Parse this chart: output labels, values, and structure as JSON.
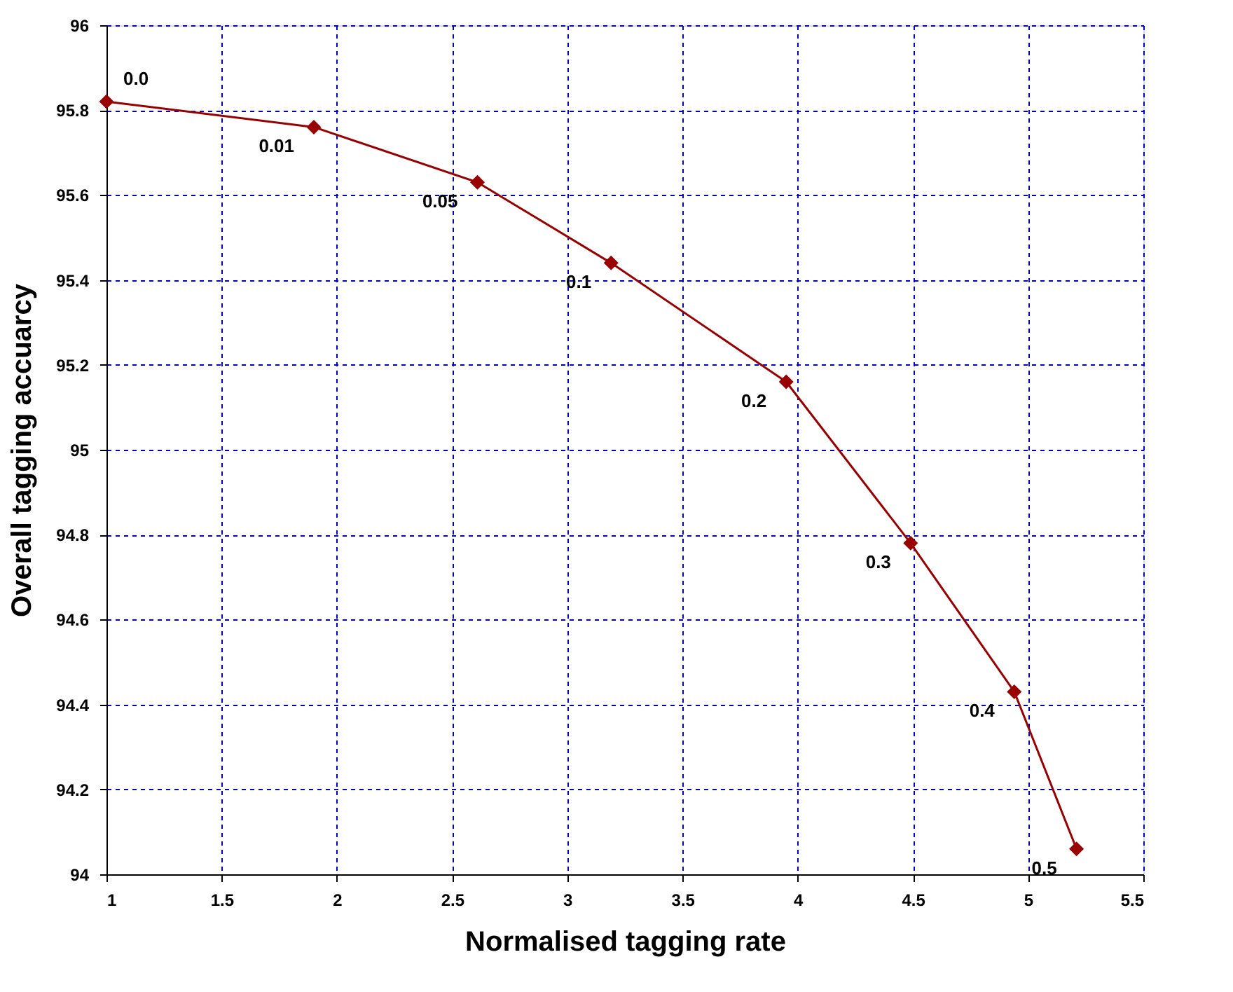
{
  "chart_data": {
    "type": "line",
    "xlabel": "Normalised tagging rate",
    "ylabel": "Overall tagging accuarcy",
    "x": [
      1.0,
      1.9,
      2.61,
      3.19,
      3.95,
      4.49,
      4.94,
      5.21
    ],
    "series": [
      {
        "color": "#990000",
        "values": [
          95.82,
          95.76,
          95.63,
          95.44,
          95.16,
          94.78,
          94.43,
          94.06
        ]
      }
    ],
    "xlim": [
      1,
      5.5
    ],
    "xticks": [
      1,
      1.5,
      2,
      2.5,
      3,
      3.5,
      4,
      4.5,
      5,
      5.5
    ],
    "ylim": [
      94,
      96
    ],
    "yticks": [
      94,
      94.2,
      94.4,
      94.6,
      94.8,
      95,
      95.2,
      95.4,
      95.6,
      95.8,
      96
    ],
    "grid": true,
    "marker": "diamond",
    "line_style": "solid",
    "annotations": [
      {
        "text": "0.0",
        "x": 1.0,
        "y": 95.82
      },
      {
        "text": "0.01",
        "x": 1.9,
        "y": 95.76
      },
      {
        "text": "0.05",
        "x": 2.61,
        "y": 95.63
      },
      {
        "text": "0.1",
        "x": 3.19,
        "y": 95.44
      },
      {
        "text": "0.2",
        "x": 3.95,
        "y": 95.16
      },
      {
        "text": "0.3",
        "x": 4.49,
        "y": 94.78
      },
      {
        "text": "0.4",
        "x": 4.94,
        "y": 94.43
      },
      {
        "text": "0.5",
        "x": 5.21,
        "y": 94.06
      }
    ]
  }
}
